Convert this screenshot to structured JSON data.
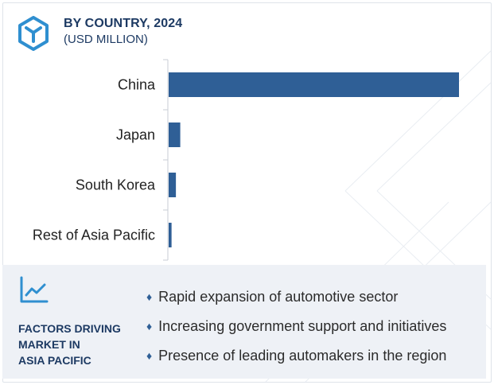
{
  "header": {
    "title": "BY COUNTRY, 2024",
    "subtitle": "(USD MILLION)",
    "icon": "cube-logo-icon"
  },
  "colors": {
    "bar": "#2f5f96",
    "accent": "#2f8fd0",
    "title": "#1d3a63",
    "panel_bg": "#eef1f6"
  },
  "chart_data": {
    "type": "bar",
    "orientation": "horizontal",
    "title": "BY COUNTRY, 2024",
    "subtitle": "(USD MILLION)",
    "categories": [
      "China",
      "Japan",
      "South Korea",
      "Rest of Asia Pacific"
    ],
    "values": [
      100,
      4,
      2.5,
      1
    ],
    "xlim": [
      0,
      100
    ],
    "grid": false,
    "legend": "none"
  },
  "factors": {
    "icon": "trend-line-chart-icon",
    "title_lines": [
      "FACTORS DRIVING",
      "MARKET IN",
      "ASIA PACIFIC"
    ],
    "items": [
      "Rapid expansion of automotive sector",
      "Increasing government support and initiatives",
      "Presence of leading automakers in the region"
    ]
  }
}
